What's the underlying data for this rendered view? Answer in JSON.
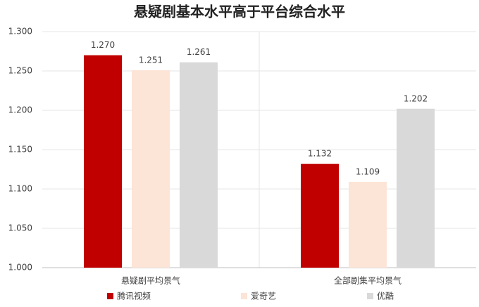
{
  "chart_data": {
    "type": "bar",
    "title": "悬疑剧基本水平高于平台综合水平",
    "categories": [
      "悬疑剧平均景气",
      "全部剧集平均景气"
    ],
    "series": [
      {
        "name": "腾讯视频",
        "color": "#c00000",
        "values": [
          1.27,
          1.132
        ],
        "value_labels": [
          "1.270",
          "1.132"
        ]
      },
      {
        "name": "爱奇艺",
        "color": "#fce4d6",
        "values": [
          1.251,
          1.109
        ],
        "value_labels": [
          "1.251",
          "1.109"
        ]
      },
      {
        "name": "优酷",
        "color": "#d9d9d9",
        "values": [
          1.261,
          1.202
        ],
        "value_labels": [
          "1.261",
          "1.202"
        ]
      }
    ],
    "ylim": [
      1,
      1.3
    ],
    "yticks": [
      {
        "value": 1,
        "label": "1.000"
      },
      {
        "value": 1.05,
        "label": "1.050"
      },
      {
        "value": 1.1,
        "label": "1.100"
      },
      {
        "value": 1.15,
        "label": "1.150"
      },
      {
        "value": 1.2,
        "label": "1.200"
      },
      {
        "value": 1.25,
        "label": "1.250"
      },
      {
        "value": 1.3,
        "label": "1.300"
      }
    ],
    "grid": true,
    "legend": "bottom"
  }
}
